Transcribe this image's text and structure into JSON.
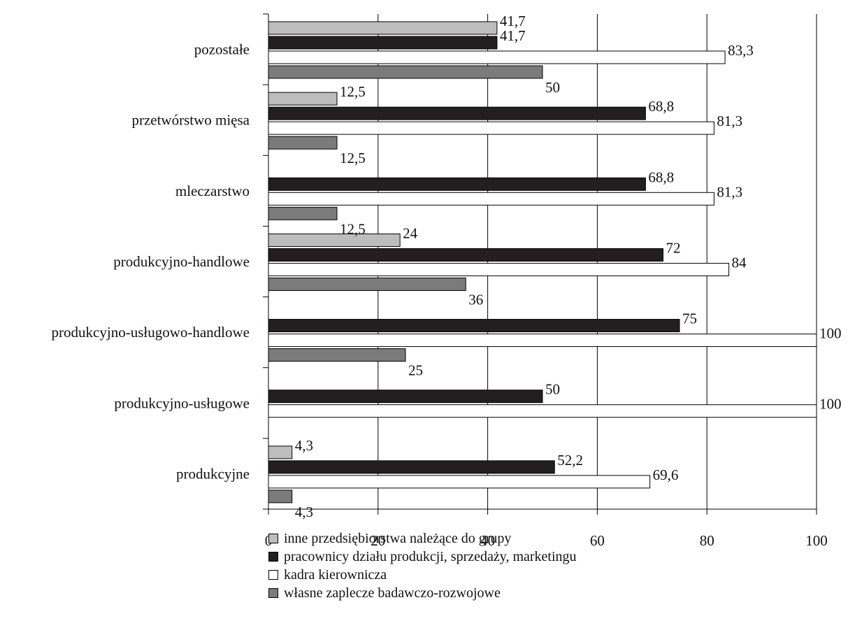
{
  "chart_data": {
    "type": "bar",
    "orientation": "horizontal",
    "categories": [
      "pozostałe",
      "przetwórstwo mięsa",
      "mleczarstwo",
      "produkcyjno-handlowe",
      "produkcyjno-usługowo-handlowe",
      "produkcyjno-usługowe",
      "produkcyjne"
    ],
    "series": [
      {
        "name": "inne przedsiębiorstwa należące do grupy",
        "color": "#bdbdbd",
        "values": [
          41.7,
          12.5,
          null,
          24,
          null,
          null,
          4.3
        ],
        "labels": [
          "41,7",
          "12,5",
          "",
          "24",
          "",
          "",
          "4,3"
        ]
      },
      {
        "name": "pracownicy działu produkcji, sprzedaży, marketingu",
        "color": "#231f20",
        "values": [
          41.7,
          68.8,
          68.8,
          72,
          75,
          50,
          52.2
        ],
        "labels": [
          "41,7",
          "68,8",
          "68,8",
          "72",
          "75",
          "50",
          "52,2"
        ]
      },
      {
        "name": "kadra kierownicza",
        "color": "#ffffff",
        "values": [
          83.3,
          81.3,
          81.3,
          84,
          100,
          100,
          69.6
        ],
        "labels": [
          "83,3",
          "81,3",
          "81,3",
          "84",
          "100",
          "100",
          "69,6"
        ]
      },
      {
        "name": "własne zaplecze badawczo-rozwojowe",
        "color": "#7b7b7b",
        "values": [
          50,
          12.5,
          12.5,
          36,
          25,
          null,
          4.3
        ],
        "labels": [
          "50",
          "12,5",
          "12,5",
          "36",
          "25",
          "",
          "4,3"
        ]
      }
    ],
    "xlim": [
      0,
      100
    ],
    "xticks": [
      0,
      20,
      40,
      60,
      80,
      100
    ],
    "grid": true,
    "legend_position": "bottom",
    "title": "",
    "xlabel": "",
    "ylabel": ""
  }
}
